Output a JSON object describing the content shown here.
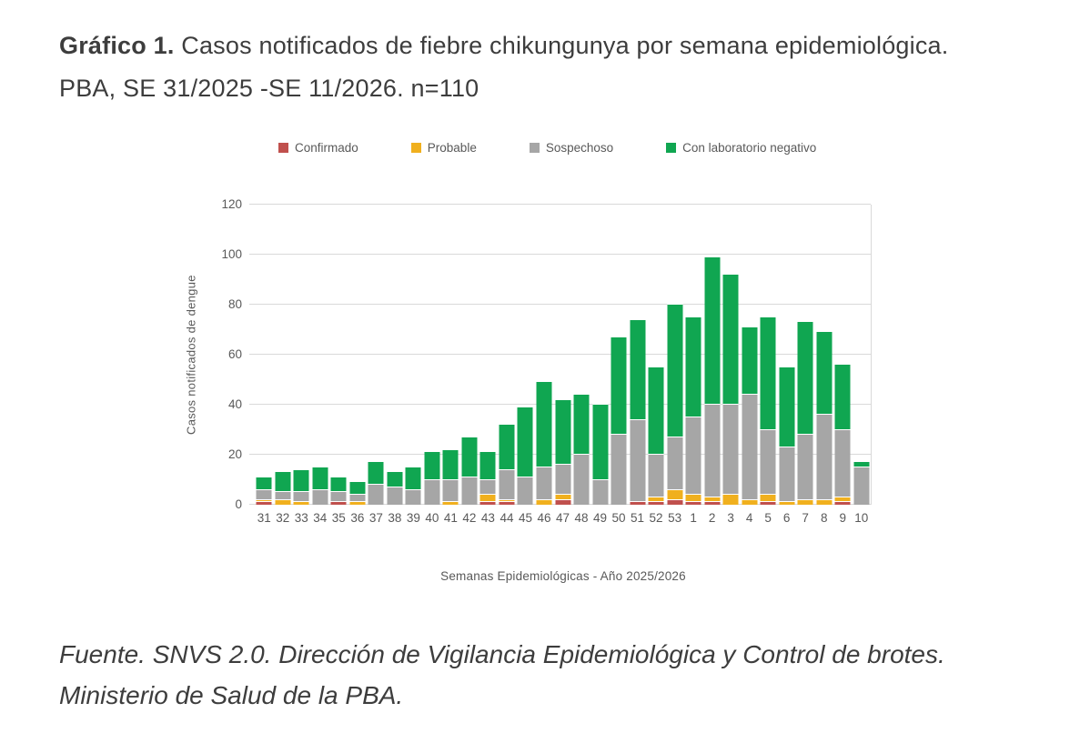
{
  "title": {
    "bold": "Gráfico 1.",
    "rest": " Casos notificados de fiebre chikungunya por semana epidemiológica. PBA,  SE 31/2025 -SE 11/2026. n=110"
  },
  "legend": [
    {
      "label": "Confirmado",
      "color": "#C0504D"
    },
    {
      "label": "Probable",
      "color": "#F0B01E"
    },
    {
      "label": "Sospechoso",
      "color": "#A6A6A6"
    },
    {
      "label": "Con laboratorio negativo",
      "color": "#10A651"
    }
  ],
  "chart_data": {
    "type": "bar",
    "stacked": true,
    "title": "Casos notificados de fiebre chikungunya por semana epidemiológica. PBA, SE 31/2025 - SE 11/2026. n=110",
    "xlabel": "Semanas Epidemiológicas  - Año 2025/2026",
    "ylabel": "Casos notificados de dengue",
    "ylim": [
      0,
      120
    ],
    "yticks": [
      0,
      20,
      40,
      60,
      80,
      100,
      120
    ],
    "grid": "horizontal",
    "legend_position": "top",
    "categories": [
      "31",
      "32",
      "33",
      "34",
      "35",
      "36",
      "37",
      "38",
      "39",
      "40",
      "41",
      "42",
      "43",
      "44",
      "45",
      "46",
      "47",
      "48",
      "49",
      "50",
      "51",
      "52",
      "53",
      "1",
      "2",
      "3",
      "4",
      "5",
      "6",
      "7",
      "8",
      "9",
      "10"
    ],
    "series": [
      {
        "name": "Confirmado",
        "color": "#C0504D",
        "values": [
          1,
          0,
          0,
          0,
          1,
          0,
          0,
          0,
          0,
          0,
          0,
          0,
          1,
          1,
          0,
          0,
          2,
          0,
          0,
          0,
          1,
          1,
          2,
          1,
          1,
          0,
          0,
          1,
          0,
          0,
          0,
          1,
          0
        ]
      },
      {
        "name": "Probable",
        "color": "#F0B01E",
        "values": [
          1,
          2,
          1,
          0,
          0,
          1,
          0,
          0,
          0,
          0,
          1,
          0,
          3,
          1,
          0,
          2,
          2,
          0,
          0,
          0,
          0,
          2,
          4,
          3,
          2,
          4,
          2,
          3,
          1,
          2,
          2,
          2,
          0
        ]
      },
      {
        "name": "Sospechoso",
        "color": "#A6A6A6",
        "values": [
          4,
          3,
          4,
          6,
          4,
          3,
          8,
          7,
          6,
          10,
          9,
          11,
          6,
          12,
          11,
          13,
          12,
          20,
          10,
          28,
          33,
          17,
          21,
          31,
          37,
          36,
          42,
          26,
          22,
          26,
          34,
          27,
          15
        ]
      },
      {
        "name": "Con laboratorio negativo",
        "color": "#10A651",
        "values": [
          5,
          8,
          9,
          9,
          6,
          5,
          9,
          6,
          9,
          11,
          12,
          16,
          11,
          18,
          28,
          34,
          26,
          24,
          30,
          39,
          40,
          35,
          53,
          40,
          59,
          52,
          27,
          45,
          32,
          45,
          33,
          26,
          2
        ]
      }
    ]
  },
  "source": {
    "text": "Fuente. SNVS 2.0. Dirección de Vigilancia Epidemiológica y Control de brotes. Ministerio de Salud de la  PBA."
  }
}
